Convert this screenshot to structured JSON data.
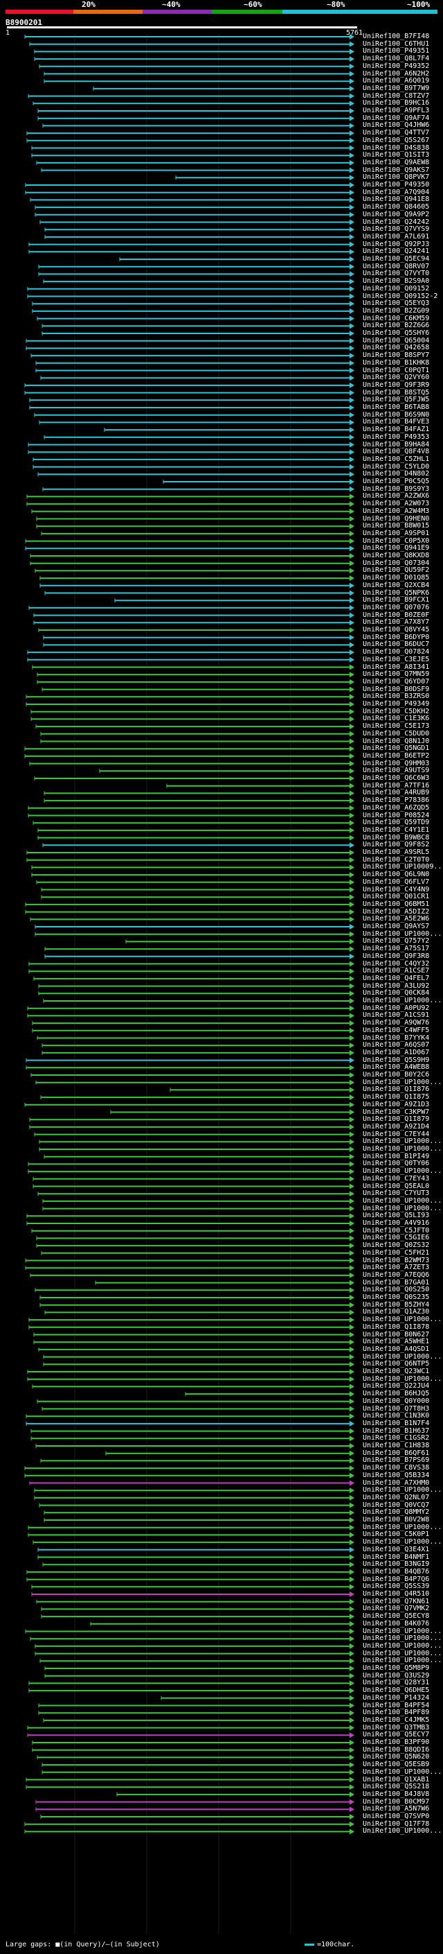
{
  "legend": {
    "ticks": [
      "20%",
      "~40%",
      "~60%",
      "~80%",
      "~100%"
    ],
    "colors": [
      "#e8102a",
      "#e56a0d",
      "#8a2cb3",
      "#13a313",
      "#21c1d2"
    ]
  },
  "query": {
    "id": "B8900201",
    "start": "1",
    "end": "5761"
  },
  "colors": {
    "cyan": "#2ec5d6",
    "green": "#3cc83c",
    "magenta": "#c040c0"
  },
  "hits": [
    {
      "label": "UniRef100_B7FI48",
      "c": "cyan"
    },
    {
      "label": "UniRef100_C6THU1",
      "c": "cyan"
    },
    {
      "label": "UniRef100_P49351",
      "c": "cyan"
    },
    {
      "label": "UniRef100_Q8L7F4",
      "c": "cyan"
    },
    {
      "label": "UniRef100_P49352",
      "c": "cyan"
    },
    {
      "label": "UniRef100_A6N2H2",
      "c": "cyan"
    },
    {
      "label": "UniRef100_A6Q019",
      "c": "cyan"
    },
    {
      "label": "UniRef100_B9T7W9",
      "c": "cyan"
    },
    {
      "label": "UniRef100_C8TZV7",
      "c": "cyan"
    },
    {
      "label": "UniRef100_B9HC16",
      "c": "cyan"
    },
    {
      "label": "UniRef100_A9PFL3",
      "c": "cyan"
    },
    {
      "label": "UniRef100_Q9AF74",
      "c": "cyan"
    },
    {
      "label": "UniRef100_Q4JHW6",
      "c": "cyan"
    },
    {
      "label": "UniRef100_Q4TTV7",
      "c": "cyan"
    },
    {
      "label": "UniRef100_Q5S267",
      "c": "cyan"
    },
    {
      "label": "UniRef100_D4S838",
      "c": "cyan"
    },
    {
      "label": "UniRef100_Q1SIT3",
      "c": "cyan"
    },
    {
      "label": "UniRef100_Q9AEW8",
      "c": "cyan"
    },
    {
      "label": "UniRef100_Q9AKS7",
      "c": "cyan"
    },
    {
      "label": "UniRef100_Q8PVK7",
      "c": "cyan"
    },
    {
      "label": "UniRef100_P49350",
      "c": "cyan"
    },
    {
      "label": "UniRef100_A7Q904",
      "c": "cyan"
    },
    {
      "label": "UniRef100_Q941E8",
      "c": "cyan"
    },
    {
      "label": "UniRef100_Q84605",
      "c": "cyan"
    },
    {
      "label": "UniRef100_Q9A9P2",
      "c": "cyan"
    },
    {
      "label": "UniRef100_Q24242",
      "c": "cyan"
    },
    {
      "label": "UniRef100_Q7VYS9",
      "c": "cyan"
    },
    {
      "label": "UniRef100_A7L691",
      "c": "cyan"
    },
    {
      "label": "UniRef100_Q92PJ3",
      "c": "cyan"
    },
    {
      "label": "UniRef100_Q24241",
      "c": "cyan"
    },
    {
      "label": "UniRef100_Q5EC94",
      "c": "cyan"
    },
    {
      "label": "UniRef100_Q8RV07",
      "c": "cyan"
    },
    {
      "label": "UniRef100_Q7VYT0",
      "c": "cyan"
    },
    {
      "label": "UniRef100_B2S9A0",
      "c": "cyan"
    },
    {
      "label": "UniRef100_Q09152",
      "c": "cyan"
    },
    {
      "label": "UniRef100_Q09152-2",
      "c": "cyan"
    },
    {
      "label": "UniRef100_Q5EYQ3",
      "c": "cyan"
    },
    {
      "label": "UniRef100_B2ZG09",
      "c": "cyan"
    },
    {
      "label": "UniRef100_C6KM59",
      "c": "cyan"
    },
    {
      "label": "UniRef100_B2Z6G6",
      "c": "cyan"
    },
    {
      "label": "UniRef100_Q5SHY6",
      "c": "cyan"
    },
    {
      "label": "UniRef100_Q65004",
      "c": "cyan"
    },
    {
      "label": "UniRef100_Q42658",
      "c": "cyan"
    },
    {
      "label": "UniRef100_B8SPY7",
      "c": "cyan"
    },
    {
      "label": "UniRef100_B1KHK8",
      "c": "cyan"
    },
    {
      "label": "UniRef100_C0PQT1",
      "c": "cyan"
    },
    {
      "label": "UniRef100_Q2VY60",
      "c": "cyan"
    },
    {
      "label": "UniRef100_Q9F3R9",
      "c": "cyan"
    },
    {
      "label": "UniRef100_B8STQ5",
      "c": "cyan"
    },
    {
      "label": "UniRef100_Q5FJW5",
      "c": "cyan"
    },
    {
      "label": "UniRef100_B6TAB8",
      "c": "cyan"
    },
    {
      "label": "UniRef100_B6S9N0",
      "c": "cyan"
    },
    {
      "label": "UniRef100_B4FVE3",
      "c": "cyan"
    },
    {
      "label": "UniRef100_B4FAZ1",
      "c": "cyan"
    },
    {
      "label": "UniRef100_P49353",
      "c": "cyan"
    },
    {
      "label": "UniRef100_B9HA84",
      "c": "cyan"
    },
    {
      "label": "UniRef100_Q8F4V8",
      "c": "cyan"
    },
    {
      "label": "UniRef100_C5ZHL1",
      "c": "cyan"
    },
    {
      "label": "UniRef100_C5YLD0",
      "c": "cyan"
    },
    {
      "label": "UniRef100_D4N802",
      "c": "cyan"
    },
    {
      "label": "UniRef100_P0C5Q5",
      "c": "cyan"
    },
    {
      "label": "UniRef100_B9S9Y3",
      "c": "cyan"
    },
    {
      "label": "UniRef100_A2ZWX6",
      "c": "green"
    },
    {
      "label": "UniRef100_A2W073",
      "c": "green"
    },
    {
      "label": "UniRef100_A2W4M3",
      "c": "green"
    },
    {
      "label": "UniRef100_Q9HEN0",
      "c": "green"
    },
    {
      "label": "UniRef100_B8W015",
      "c": "green"
    },
    {
      "label": "UniRef100_A9SP01",
      "c": "green"
    },
    {
      "label": "UniRef100_C0P5X0",
      "c": "green"
    },
    {
      "label": "UniRef100_Q941E9",
      "c": "cyan"
    },
    {
      "label": "UniRef100_Q8KXD8",
      "c": "green"
    },
    {
      "label": "UniRef100_Q07304",
      "c": "green"
    },
    {
      "label": "UniRef100_QU59F2",
      "c": "green"
    },
    {
      "label": "UniRef100_D01Q85",
      "c": "green"
    },
    {
      "label": "UniRef100_Q2XCB4",
      "c": "cyan"
    },
    {
      "label": "UniRef100_Q5NPK6",
      "c": "cyan"
    },
    {
      "label": "UniRef100_B9FCX1",
      "c": "cyan"
    },
    {
      "label": "UniRef100_Q07076",
      "c": "cyan"
    },
    {
      "label": "UniRef100_B0ZE0F",
      "c": "cyan"
    },
    {
      "label": "UniRef100_A7X8Y7",
      "c": "cyan"
    },
    {
      "label": "UniRef100_Q8VY45",
      "c": "green"
    },
    {
      "label": "UniRef100_B6DYP0",
      "c": "cyan"
    },
    {
      "label": "UniRef100_B6DUC7",
      "c": "cyan"
    },
    {
      "label": "UniRef100_Q07824",
      "c": "cyan"
    },
    {
      "label": "UniRef100_C3EJE5",
      "c": "cyan"
    },
    {
      "label": "UniRef100_A8I341",
      "c": "green"
    },
    {
      "label": "UniRef100_Q7MN59",
      "c": "green"
    },
    {
      "label": "UniRef100_Q6YD07",
      "c": "green"
    },
    {
      "label": "UniRef100_B0DSF9",
      "c": "green"
    },
    {
      "label": "UniRef100_B3ZRS0",
      "c": "green"
    },
    {
      "label": "UniRef100_P49349",
      "c": "green"
    },
    {
      "label": "UniRef100_C5DKH2",
      "c": "green"
    },
    {
      "label": "UniRef100_C1E3K6",
      "c": "green"
    },
    {
      "label": "UniRef100_C5E173",
      "c": "green"
    },
    {
      "label": "UniRef100_C5DUD0",
      "c": "green"
    },
    {
      "label": "UniRef100_Q8N1J0",
      "c": "green"
    },
    {
      "label": "UniRef100_Q5NGD1",
      "c": "green"
    },
    {
      "label": "UniRef100_B6ETP2",
      "c": "green"
    },
    {
      "label": "UniRef100_Q9HM03",
      "c": "green"
    },
    {
      "label": "UniRef100_A9UTS9",
      "c": "green"
    },
    {
      "label": "UniRef100_Q6C6W3",
      "c": "green"
    },
    {
      "label": "UniRef100_A7TF16",
      "c": "green"
    },
    {
      "label": "UniRef100_A4RUB9",
      "c": "green"
    },
    {
      "label": "UniRef100_P78386",
      "c": "green"
    },
    {
      "label": "UniRef100_A6ZQD5",
      "c": "green"
    },
    {
      "label": "UniRef100_P08524",
      "c": "green"
    },
    {
      "label": "UniRef100_Q59TD9",
      "c": "green"
    },
    {
      "label": "UniRef100_C4Y1E1",
      "c": "green"
    },
    {
      "label": "UniRef100_B9WBC8",
      "c": "green"
    },
    {
      "label": "UniRef100_Q9F8S2",
      "c": "cyan"
    },
    {
      "label": "UniRef100_A9SRL5",
      "c": "green"
    },
    {
      "label": "UniRef100_C2T0T0",
      "c": "green"
    },
    {
      "label": "UniRef100_UP10009...",
      "c": "green"
    },
    {
      "label": "UniRef100_Q6L9N0",
      "c": "green"
    },
    {
      "label": "UniRef100_Q6FLV7",
      "c": "green"
    },
    {
      "label": "UniRef100_C4Y4N9",
      "c": "green"
    },
    {
      "label": "UniRef100_Q01CR1",
      "c": "green"
    },
    {
      "label": "UniRef100_Q6BM51",
      "c": "green"
    },
    {
      "label": "UniRef100_A5DIZ2",
      "c": "green"
    },
    {
      "label": "UniRef100_A5E2W6",
      "c": "green"
    },
    {
      "label": "UniRef100_Q9AYS7",
      "c": "cyan"
    },
    {
      "label": "UniRef100_UP1000...",
      "c": "green"
    },
    {
      "label": "UniRef100_Q757Y2",
      "c": "green"
    },
    {
      "label": "UniRef100_A75S17",
      "c": "green"
    },
    {
      "label": "UniRef100_Q9F3R8",
      "c": "cyan"
    },
    {
      "label": "UniRef100_C4QY32",
      "c": "green"
    },
    {
      "label": "UniRef100_A1CSE7",
      "c": "green"
    },
    {
      "label": "UniRef100_Q4FEL7",
      "c": "green"
    },
    {
      "label": "UniRef100_A3LU92",
      "c": "green"
    },
    {
      "label": "UniRef100_Q0CK84",
      "c": "green"
    },
    {
      "label": "UniRef100_UP1000...",
      "c": "green"
    },
    {
      "label": "UniRef100_A0PU92",
      "c": "green"
    },
    {
      "label": "UniRef100_A1CS91",
      "c": "green"
    },
    {
      "label": "UniRef100_A9QW76",
      "c": "green"
    },
    {
      "label": "UniRef100_C4WFF5",
      "c": "green"
    },
    {
      "label": "UniRef100_B7YYK4",
      "c": "green"
    },
    {
      "label": "UniRef100_A6QS07",
      "c": "green"
    },
    {
      "label": "UniRef100_A1D067",
      "c": "green"
    },
    {
      "label": "UniRef100_Q5S9H9",
      "c": "cyan"
    },
    {
      "label": "UniRef100_A4WEB8",
      "c": "green"
    },
    {
      "label": "UniRef100_B0Y2C6",
      "c": "green"
    },
    {
      "label": "UniRef100_UP1000...",
      "c": "green"
    },
    {
      "label": "UniRef100_Q1I876",
      "c": "green"
    },
    {
      "label": "UniRef100_Q1I875",
      "c": "green"
    },
    {
      "label": "UniRef100_A9Z1D3",
      "c": "green"
    },
    {
      "label": "UniRef100_C3KPW7",
      "c": "green"
    },
    {
      "label": "UniRef100_Q1I879",
      "c": "green"
    },
    {
      "label": "UniRef100_A9Z1D4",
      "c": "green"
    },
    {
      "label": "UniRef100_C7EY44",
      "c": "green"
    },
    {
      "label": "UniRef100_UP1000...",
      "c": "green"
    },
    {
      "label": "UniRef100_UP1000...",
      "c": "green"
    },
    {
      "label": "UniRef100_B1PI49",
      "c": "green"
    },
    {
      "label": "UniRef100_Q0TY06",
      "c": "green"
    },
    {
      "label": "UniRef100_UP1000...",
      "c": "green"
    },
    {
      "label": "UniRef100_C7EY43",
      "c": "green"
    },
    {
      "label": "UniRef100_Q5EAL0",
      "c": "green"
    },
    {
      "label": "UniRef100_C7YUT3",
      "c": "green"
    },
    {
      "label": "UniRef100_UP1000...",
      "c": "green"
    },
    {
      "label": "UniRef100_UP1000...",
      "c": "green"
    },
    {
      "label": "UniRef100_Q5LI93",
      "c": "green"
    },
    {
      "label": "UniRef100_A4V916",
      "c": "green"
    },
    {
      "label": "UniRef100_C5JFT0",
      "c": "green"
    },
    {
      "label": "UniRef100_C5GIE6",
      "c": "green"
    },
    {
      "label": "UniRef100_Q0ZS32",
      "c": "green"
    },
    {
      "label": "UniRef100_C5FH21",
      "c": "green"
    },
    {
      "label": "UniRef100_B2WM73",
      "c": "green"
    },
    {
      "label": "UniRef100_A7ZET3",
      "c": "green"
    },
    {
      "label": "UniRef100_A7EQQ6",
      "c": "green"
    },
    {
      "label": "UniRef100_B7GA01",
      "c": "green"
    },
    {
      "label": "UniRef100_Q0S250",
      "c": "green"
    },
    {
      "label": "UniRef100_Q0S235",
      "c": "green"
    },
    {
      "label": "UniRef100_B5ZHY4",
      "c": "green"
    },
    {
      "label": "UniRef100_Q1AZ30",
      "c": "green"
    },
    {
      "label": "UniRef100_UP1000...",
      "c": "green"
    },
    {
      "label": "UniRef100_Q1I878",
      "c": "green"
    },
    {
      "label": "UniRef100_B0N627",
      "c": "green"
    },
    {
      "label": "UniRef100_A5WHE1",
      "c": "green"
    },
    {
      "label": "UniRef100_A4QSD1",
      "c": "green"
    },
    {
      "label": "UniRef100_UP1000...",
      "c": "green"
    },
    {
      "label": "UniRef100_Q6NTP5",
      "c": "green"
    },
    {
      "label": "UniRef100_Q23WC1",
      "c": "green"
    },
    {
      "label": "UniRef100_UP1000...",
      "c": "green"
    },
    {
      "label": "UniRef100_Q22JU4",
      "c": "green"
    },
    {
      "label": "UniRef100_B6HJQ5",
      "c": "green"
    },
    {
      "label": "UniRef100_Q0Y000",
      "c": "green"
    },
    {
      "label": "UniRef100_Q7T8H3",
      "c": "green"
    },
    {
      "label": "UniRef100_C1N3K0",
      "c": "green"
    },
    {
      "label": "UniRef100_B1N7F4",
      "c": "cyan"
    },
    {
      "label": "UniRef100_B1H637",
      "c": "green"
    },
    {
      "label": "UniRef100_C1GSR2",
      "c": "green"
    },
    {
      "label": "UniRef100_C1H838",
      "c": "green"
    },
    {
      "label": "UniRef100_B6QF61",
      "c": "green"
    },
    {
      "label": "UniRef100_B7PS69",
      "c": "green"
    },
    {
      "label": "UniRef100_C8VS38",
      "c": "green"
    },
    {
      "label": "UniRef100_Q5B334",
      "c": "green"
    },
    {
      "label": "UniRef100_A7XHM0",
      "c": "magenta"
    },
    {
      "label": "UniRef100_UP1000...",
      "c": "green"
    },
    {
      "label": "UniRef100_Q2NL07",
      "c": "green"
    },
    {
      "label": "UniRef100_Q0VCQ7",
      "c": "green"
    },
    {
      "label": "UniRef100_Q8MMY2",
      "c": "green"
    },
    {
      "label": "UniRef100_B0V2W8",
      "c": "green"
    },
    {
      "label": "UniRef100_UP1000...",
      "c": "green"
    },
    {
      "label": "UniRef100_C5K0P1",
      "c": "green"
    },
    {
      "label": "UniRef100_UP1000...",
      "c": "green"
    },
    {
      "label": "UniRef100_Q3E4X1",
      "c": "cyan"
    },
    {
      "label": "UniRef100_B4NMF1",
      "c": "green"
    },
    {
      "label": "UniRef100_B3NGI9",
      "c": "green"
    },
    {
      "label": "UniRef100_B4QB76",
      "c": "green"
    },
    {
      "label": "UniRef100_B4P7Q6",
      "c": "green"
    },
    {
      "label": "UniRef100_Q5SS39",
      "c": "green"
    },
    {
      "label": "UniRef100_Q4R510",
      "c": "magenta"
    },
    {
      "label": "UniRef100_Q7KN61",
      "c": "green"
    },
    {
      "label": "UniRef100_Q7VMK2",
      "c": "green"
    },
    {
      "label": "UniRef100_Q5ECY8",
      "c": "green"
    },
    {
      "label": "UniRef100_B4K076",
      "c": "green"
    },
    {
      "label": "UniRef100_UP1000...",
      "c": "green"
    },
    {
      "label": "UniRef100_UP1000...",
      "c": "green"
    },
    {
      "label": "UniRef100_UP1000...",
      "c": "green"
    },
    {
      "label": "UniRef100_UP1000...",
      "c": "green"
    },
    {
      "label": "UniRef100_UP1000...",
      "c": "green"
    },
    {
      "label": "UniRef100_Q5M8P9",
      "c": "green"
    },
    {
      "label": "UniRef100_Q3US29",
      "c": "green"
    },
    {
      "label": "UniRef100_Q28Y31",
      "c": "green"
    },
    {
      "label": "UniRef100_Q6DHE5",
      "c": "green"
    },
    {
      "label": "UniRef100_P14324",
      "c": "green"
    },
    {
      "label": "UniRef100_B4PF54",
      "c": "green"
    },
    {
      "label": "UniRef100_B4PF89",
      "c": "green"
    },
    {
      "label": "UniRef100_C4JMK5",
      "c": "green"
    },
    {
      "label": "UniRef100_Q3TMB3",
      "c": "green"
    },
    {
      "label": "UniRef100_Q5ECY7",
      "c": "magenta"
    },
    {
      "label": "UniRef100_B3PF90",
      "c": "green"
    },
    {
      "label": "UniRef100_B8QDI6",
      "c": "green"
    },
    {
      "label": "UniRef100_Q5N620",
      "c": "green"
    },
    {
      "label": "UniRef100_Q5ESB9",
      "c": "green"
    },
    {
      "label": "UniRef100_UP1000...",
      "c": "green"
    },
    {
      "label": "UniRef100_Q1XAB1",
      "c": "green"
    },
    {
      "label": "UniRef100_Q5S218",
      "c": "green"
    },
    {
      "label": "UniRef100_B4J8V8",
      "c": "green"
    },
    {
      "label": "UniRef100_B0CM97",
      "c": "magenta"
    },
    {
      "label": "UniRef100_A5N7W6",
      "c": "magenta"
    },
    {
      "label": "UniRef100_Q7SVP0",
      "c": "green"
    },
    {
      "label": "UniRef100_Q17F78",
      "c": "green"
    },
    {
      "label": "UniRef100_UP1000...",
      "c": "green"
    }
  ],
  "footer": {
    "left": "Large gaps: ■(in Query)/—(in Subject)",
    "right": "=100char."
  }
}
